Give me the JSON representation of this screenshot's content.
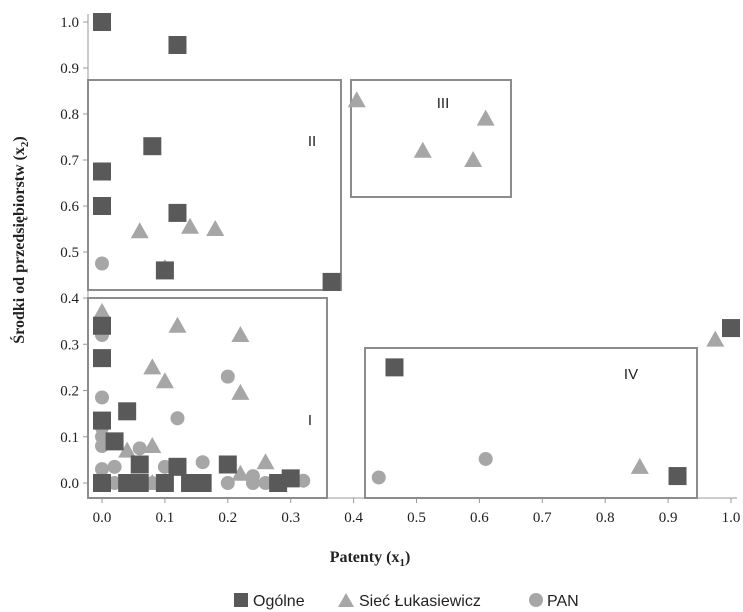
{
  "chart_data": {
    "type": "scatter",
    "xlabel": "Patenty (x",
    "xlabel_sub": "1",
    "xlabel_close": ")",
    "ylabel": "Środki od przedsiębiorstw (x",
    "ylabel_sub": "2",
    "ylabel_close": ")",
    "xlim": [
      0.0,
      1.0
    ],
    "x_ticks": [
      "0.0",
      "0.1",
      "0.2",
      "0.3",
      "0.4",
      "0.5",
      "0.6",
      "0.7",
      "0.8",
      "0.9",
      "1.0"
    ],
    "y_upper_ticks": [
      "1.0",
      "0.9",
      "0.8",
      "0.7",
      "0.6",
      "0.5"
    ],
    "y_lower_ticks": [
      "0.4",
      "0.3",
      "0.2",
      "0.1",
      "0.0"
    ],
    "y_upper_range": [
      0.42,
      1.0
    ],
    "y_lower_range": [
      0.0,
      0.4
    ],
    "grid": false,
    "legend_position": "bottom",
    "regions": [
      {
        "label": "I",
        "x": [
          0.0,
          0.355
        ],
        "y": [
          0.0,
          0.4
        ]
      },
      {
        "label": "II",
        "x": [
          0.0,
          0.38
        ],
        "y": [
          0.42,
          0.875
        ]
      },
      {
        "label": "III",
        "x": [
          0.39,
          0.65
        ],
        "y": [
          0.62,
          0.875
        ]
      },
      {
        "label": "IV",
        "x": [
          0.415,
          0.94
        ],
        "y": [
          0.0,
          0.29
        ]
      }
    ],
    "series": [
      {
        "name": "Ogólne",
        "marker": "square",
        "color": "#595959",
        "points": [
          [
            0.0,
            1.0
          ],
          [
            0.12,
            0.95
          ],
          [
            0.08,
            0.73
          ],
          [
            0.0,
            0.675
          ],
          [
            0.0,
            0.6
          ],
          [
            0.12,
            0.585
          ],
          [
            0.1,
            0.46
          ],
          [
            0.365,
            0.435
          ],
          [
            0.0,
            0.34
          ],
          [
            0.0,
            0.27
          ],
          [
            0.04,
            0.155
          ],
          [
            0.0,
            0.135
          ],
          [
            0.02,
            0.09
          ],
          [
            0.06,
            0.04
          ],
          [
            0.12,
            0.035
          ],
          [
            0.2,
            0.04
          ],
          [
            0.0,
            0.0
          ],
          [
            0.04,
            0.0
          ],
          [
            0.06,
            0.0
          ],
          [
            0.1,
            0.0
          ],
          [
            0.14,
            0.0
          ],
          [
            0.16,
            0.0
          ],
          [
            0.28,
            0.0
          ],
          [
            0.3,
            0.01
          ],
          [
            0.465,
            0.25
          ],
          [
            1.0,
            0.335
          ],
          [
            0.915,
            0.015
          ]
        ]
      },
      {
        "name": "Sieć Łukasiewicz",
        "marker": "triangle",
        "color": "#a6a6a6",
        "points": [
          [
            0.405,
            0.83
          ],
          [
            0.61,
            0.79
          ],
          [
            0.51,
            0.72
          ],
          [
            0.59,
            0.7
          ],
          [
            0.06,
            0.545
          ],
          [
            0.14,
            0.555
          ],
          [
            0.18,
            0.55
          ],
          [
            0.1,
            0.465
          ],
          [
            0.0,
            0.37
          ],
          [
            0.12,
            0.34
          ],
          [
            0.22,
            0.32
          ],
          [
            0.08,
            0.25
          ],
          [
            0.1,
            0.22
          ],
          [
            0.22,
            0.195
          ],
          [
            0.08,
            0.08
          ],
          [
            0.04,
            0.07
          ],
          [
            0.26,
            0.045
          ],
          [
            0.22,
            0.02
          ],
          [
            0.08,
            0.0
          ],
          [
            0.0,
            0.0
          ],
          [
            0.975,
            0.31
          ],
          [
            0.855,
            0.035
          ]
        ]
      },
      {
        "name": "PAN",
        "marker": "circle",
        "color": "#a6a6a6",
        "points": [
          [
            0.0,
            0.475
          ],
          [
            0.0,
            0.32
          ],
          [
            0.0,
            0.185
          ],
          [
            0.2,
            0.23
          ],
          [
            0.12,
            0.14
          ],
          [
            0.0,
            0.12
          ],
          [
            0.0,
            0.1
          ],
          [
            0.0,
            0.08
          ],
          [
            0.06,
            0.075
          ],
          [
            0.1,
            0.035
          ],
          [
            0.02,
            0.035
          ],
          [
            0.0,
            0.03
          ],
          [
            0.16,
            0.045
          ],
          [
            0.24,
            0.015
          ],
          [
            0.02,
            0.0
          ],
          [
            0.0,
            0.0
          ],
          [
            0.04,
            0.0
          ],
          [
            0.08,
            0.0
          ],
          [
            0.1,
            0.0
          ],
          [
            0.2,
            0.0
          ],
          [
            0.24,
            0.0
          ],
          [
            0.26,
            0.0
          ],
          [
            0.32,
            0.005
          ],
          [
            0.44,
            0.012
          ],
          [
            0.61,
            0.052
          ]
        ]
      }
    ]
  }
}
